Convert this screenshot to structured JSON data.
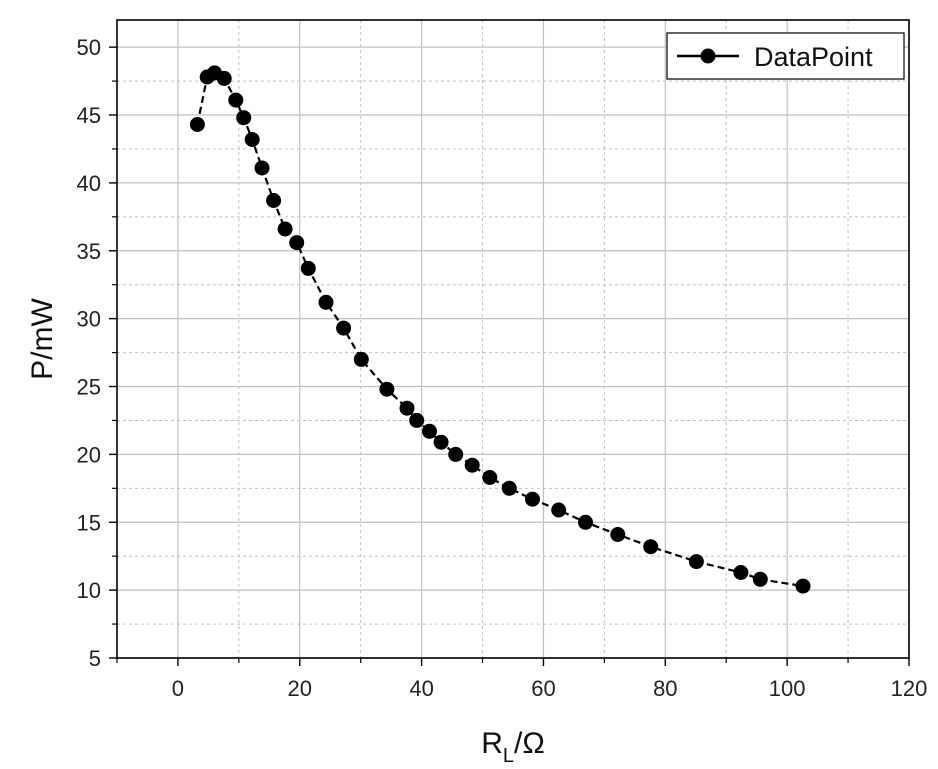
{
  "chart_data": {
    "type": "line",
    "xlabel": "R",
    "xlabel_subscript": "L",
    "xlabel_suffix": "/Ω",
    "ylabel": "P/mW",
    "xlim": [
      -10,
      120
    ],
    "ylim": [
      5,
      52
    ],
    "x_ticks": [
      0,
      20,
      40,
      60,
      80,
      100,
      120
    ],
    "y_ticks": [
      5,
      10,
      15,
      20,
      25,
      30,
      35,
      40,
      45,
      50
    ],
    "grid": true,
    "legend_position": "top-right",
    "colors": {
      "series": "#000000",
      "grid": "#c0c0c0",
      "axis": "#000000"
    },
    "series": [
      {
        "name": "DataPoint",
        "marker": "circle",
        "line_style": "dashed",
        "x": [
          3.2,
          4.8,
          6.0,
          7.6,
          9.5,
          10.8,
          12.2,
          13.8,
          15.7,
          17.6,
          19.5,
          21.4,
          24.3,
          27.2,
          30.1,
          34.3,
          37.6,
          39.2,
          41.3,
          43.2,
          45.6,
          48.3,
          51.2,
          54.4,
          58.2,
          62.5,
          66.9,
          72.2,
          77.6,
          85.1,
          92.4,
          95.6,
          102.6
        ],
        "y": [
          44.3,
          47.8,
          48.1,
          47.7,
          46.1,
          44.8,
          43.2,
          41.1,
          38.7,
          36.6,
          35.6,
          33.7,
          31.2,
          29.3,
          27.0,
          24.8,
          23.4,
          22.5,
          21.7,
          20.9,
          20.0,
          19.2,
          18.3,
          17.5,
          16.7,
          15.9,
          15.0,
          14.1,
          13.2,
          12.1,
          11.3,
          10.8,
          10.3
        ]
      }
    ]
  }
}
